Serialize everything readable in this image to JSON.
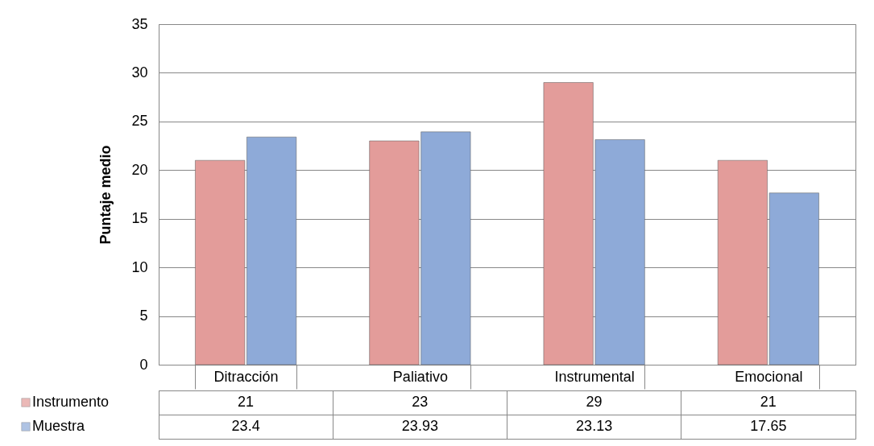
{
  "chart_data": {
    "type": "bar",
    "ylabel": "Puntaje medio",
    "categories": [
      "Ditracción",
      "Paliativo",
      "Instrumental",
      "Emocional"
    ],
    "series": [
      {
        "name": "Instrumento",
        "color": "#e39c9a",
        "values": [
          21,
          23,
          29,
          21
        ]
      },
      {
        "name": "Muestra",
        "color": "#8eaad8",
        "values": [
          23.4,
          23.93,
          23.13,
          17.65
        ]
      }
    ],
    "ylim": [
      0,
      35
    ],
    "yticks": [
      0,
      5,
      10,
      15,
      20,
      25,
      30,
      35
    ],
    "grid": "y",
    "data_labels": true,
    "legend": "bottom left"
  }
}
